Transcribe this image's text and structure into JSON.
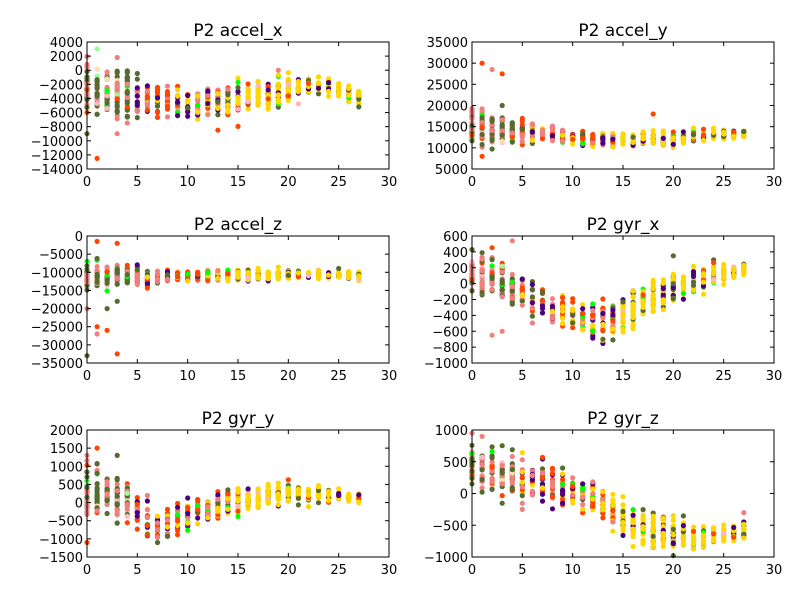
{
  "figure": {
    "background": "#ffffff",
    "palette": {
      "dark_olive": "#556b2f",
      "light_coral": "#f08080",
      "orange_red": "#ff4500",
      "indigo": "#4b0082",
      "gold": "#ffd700",
      "lime": "#00ff00",
      "pink": "#ffb6c1",
      "pale_green": "#98fb98",
      "navajo_white": "#ffdead"
    }
  },
  "chart_data": [
    {
      "type": "scatter",
      "title": "P2 accel_x",
      "xlim": [
        0,
        30
      ],
      "ylim": [
        -14000,
        4000
      ],
      "xticks": [
        0,
        5,
        10,
        15,
        20,
        25,
        30
      ],
      "yticks": [
        -14000,
        -12000,
        -10000,
        -8000,
        -6000,
        -4000,
        -2000,
        0,
        2000,
        4000
      ],
      "xtick_labels": [
        "0",
        "5",
        "10",
        "15",
        "20",
        "25",
        "30"
      ],
      "ytick_labels": [
        "−14000",
        "−12000",
        "−10000",
        "−8000",
        "−6000",
        "−4000",
        "−2000",
        "0",
        "2000",
        "4000"
      ],
      "grid": false,
      "series_profile": {
        "x_max": 27,
        "center": [
          [
            0,
            -2500
          ],
          [
            3,
            -3500
          ],
          [
            6,
            -4000
          ],
          [
            10,
            -4700
          ],
          [
            13,
            -5000
          ],
          [
            16,
            -3800
          ],
          [
            20,
            -2800
          ],
          [
            24,
            -2400
          ],
          [
            27,
            -3600
          ]
        ],
        "spread": [
          [
            0,
            4500
          ],
          [
            3,
            3500
          ],
          [
            8,
            2500
          ],
          [
            13,
            2400
          ],
          [
            20,
            2000
          ],
          [
            27,
            1000
          ]
        ],
        "outliers": [
          [
            1,
            -12500
          ],
          [
            3,
            1800
          ],
          [
            0,
            -9000
          ],
          [
            3,
            -9000
          ],
          [
            13,
            -8500
          ],
          [
            19,
            0
          ],
          [
            27,
            -5200
          ]
        ]
      }
    },
    {
      "type": "scatter",
      "title": "P2 accel_y",
      "xlim": [
        0,
        30
      ],
      "ylim": [
        5000,
        35000
      ],
      "xticks": [
        0,
        5,
        10,
        15,
        20,
        25,
        30
      ],
      "yticks": [
        5000,
        10000,
        15000,
        20000,
        25000,
        30000,
        35000
      ],
      "xtick_labels": [
        "0",
        "5",
        "10",
        "15",
        "20",
        "25",
        "30"
      ],
      "ytick_labels": [
        "5000",
        "10000",
        "15000",
        "20000",
        "25000",
        "30000",
        "35000"
      ],
      "grid": false,
      "series_profile": {
        "x_max": 27,
        "center": [
          [
            0,
            15000
          ],
          [
            2,
            14500
          ],
          [
            5,
            13500
          ],
          [
            10,
            12500
          ],
          [
            15,
            11800
          ],
          [
            20,
            12200
          ],
          [
            24,
            13000
          ],
          [
            27,
            13500
          ]
        ],
        "spread": [
          [
            0,
            5000
          ],
          [
            3,
            3500
          ],
          [
            8,
            1800
          ],
          [
            15,
            1500
          ],
          [
            20,
            2000
          ],
          [
            27,
            1200
          ]
        ],
        "outliers": [
          [
            1,
            30000
          ],
          [
            2,
            28500
          ],
          [
            3,
            27500
          ],
          [
            1,
            8000
          ],
          [
            18,
            18000
          ],
          [
            3,
            20000
          ]
        ]
      }
    },
    {
      "type": "scatter",
      "title": "P2 accel_z",
      "xlim": [
        0,
        30
      ],
      "ylim": [
        -35000,
        0
      ],
      "xticks": [
        0,
        5,
        10,
        15,
        20,
        25,
        30
      ],
      "yticks": [
        -35000,
        -30000,
        -25000,
        -20000,
        -15000,
        -10000,
        -5000,
        0
      ],
      "xtick_labels": [
        "0",
        "5",
        "10",
        "15",
        "20",
        "25",
        "30"
      ],
      "ytick_labels": [
        "−35000",
        "−30000",
        "−25000",
        "−20000",
        "−15000",
        "−10000",
        "−5000",
        "0"
      ],
      "grid": false,
      "series_profile": {
        "x_max": 27,
        "center": [
          [
            0,
            -10500
          ],
          [
            3,
            -11000
          ],
          [
            6,
            -11500
          ],
          [
            10,
            -11000
          ],
          [
            15,
            -10800
          ],
          [
            20,
            -10500
          ],
          [
            27,
            -10800
          ]
        ],
        "spread": [
          [
            0,
            4500
          ],
          [
            3,
            3000
          ],
          [
            8,
            1800
          ],
          [
            15,
            1500
          ],
          [
            27,
            1000
          ]
        ],
        "outliers": [
          [
            1,
            -1500
          ],
          [
            3,
            -2000
          ],
          [
            0,
            -33000
          ],
          [
            3,
            -32500
          ],
          [
            1,
            -25000
          ],
          [
            1,
            -27000
          ],
          [
            2,
            -26000
          ],
          [
            3,
            -18000
          ],
          [
            2,
            -20000
          ],
          [
            0,
            -20000
          ]
        ]
      }
    },
    {
      "type": "scatter",
      "title": "P2 gyr_x",
      "xlim": [
        0,
        30
      ],
      "ylim": [
        -1000,
        600
      ],
      "xticks": [
        0,
        5,
        10,
        15,
        20,
        25,
        30
      ],
      "yticks": [
        -1000,
        -800,
        -600,
        -400,
        -200,
        0,
        200,
        400,
        600
      ],
      "xtick_labels": [
        "0",
        "5",
        "10",
        "15",
        "20",
        "25",
        "30"
      ],
      "ytick_labels": [
        "−1000",
        "−800",
        "−600",
        "−400",
        "−200",
        "0",
        "200",
        "400",
        "600"
      ],
      "grid": false,
      "series_profile": {
        "x_max": 27,
        "center": [
          [
            0,
            150
          ],
          [
            2,
            80
          ],
          [
            4,
            -50
          ],
          [
            7,
            -250
          ],
          [
            10,
            -400
          ],
          [
            12,
            -480
          ],
          [
            14,
            -450
          ],
          [
            16,
            -300
          ],
          [
            19,
            -100
          ],
          [
            23,
            80
          ],
          [
            27,
            180
          ]
        ],
        "spread": [
          [
            0,
            260
          ],
          [
            4,
            240
          ],
          [
            10,
            200
          ],
          [
            15,
            280
          ],
          [
            20,
            200
          ],
          [
            27,
            120
          ]
        ],
        "outliers": [
          [
            4,
            540
          ],
          [
            3,
            -600
          ],
          [
            2,
            -650
          ],
          [
            13,
            -700
          ],
          [
            20,
            350
          ]
        ]
      }
    },
    {
      "type": "scatter",
      "title": "P2 gyr_y",
      "xlim": [
        0,
        30
      ],
      "ylim": [
        -1500,
        2000
      ],
      "xticks": [
        0,
        5,
        10,
        15,
        20,
        25,
        30
      ],
      "yticks": [
        -1500,
        -1000,
        -500,
        0,
        500,
        1000,
        1500,
        2000
      ],
      "xtick_labels": [
        "0",
        "5",
        "10",
        "15",
        "20",
        "25",
        "30"
      ],
      "ytick_labels": [
        "−1500",
        "−1000",
        "−500",
        "0",
        "500",
        "1000",
        "1500",
        "2000"
      ],
      "grid": false,
      "series_profile": {
        "x_max": 27,
        "center": [
          [
            0,
            300
          ],
          [
            2,
            200
          ],
          [
            4,
            0
          ],
          [
            6,
            -500
          ],
          [
            8,
            -600
          ],
          [
            10,
            -300
          ],
          [
            13,
            -100
          ],
          [
            16,
            100
          ],
          [
            20,
            250
          ],
          [
            24,
            200
          ],
          [
            27,
            100
          ]
        ],
        "spread": [
          [
            0,
            700
          ],
          [
            3,
            650
          ],
          [
            7,
            500
          ],
          [
            12,
            350
          ],
          [
            20,
            300
          ],
          [
            27,
            150
          ]
        ],
        "outliers": [
          [
            1,
            1500
          ],
          [
            0,
            1300
          ],
          [
            3,
            1300
          ],
          [
            0,
            -1100
          ],
          [
            7,
            -1100
          ]
        ]
      }
    },
    {
      "type": "scatter",
      "title": "P2 gyr_z",
      "xlim": [
        0,
        30
      ],
      "ylim": [
        -1000,
        1000
      ],
      "xticks": [
        0,
        5,
        10,
        15,
        20,
        25,
        30
      ],
      "yticks": [
        -1000,
        -500,
        0,
        500,
        1000
      ],
      "xtick_labels": [
        "0",
        "5",
        "10",
        "15",
        "20",
        "25",
        "30"
      ],
      "ytick_labels": [
        "−1000",
        "−500",
        "0",
        "500",
        "1000"
      ],
      "grid": false,
      "series_profile": {
        "x_max": 27,
        "center": [
          [
            0,
            450
          ],
          [
            3,
            300
          ],
          [
            6,
            200
          ],
          [
            10,
            50
          ],
          [
            13,
            -150
          ],
          [
            16,
            -500
          ],
          [
            19,
            -600
          ],
          [
            23,
            -700
          ],
          [
            27,
            -600
          ]
        ],
        "spread": [
          [
            0,
            380
          ],
          [
            4,
            360
          ],
          [
            10,
            300
          ],
          [
            15,
            300
          ],
          [
            20,
            250
          ],
          [
            27,
            150
          ]
        ],
        "outliers": [
          [
            0,
            950
          ],
          [
            1,
            900
          ],
          [
            20,
            -980
          ],
          [
            27,
            -300
          ],
          [
            5,
            -250
          ]
        ]
      }
    }
  ]
}
